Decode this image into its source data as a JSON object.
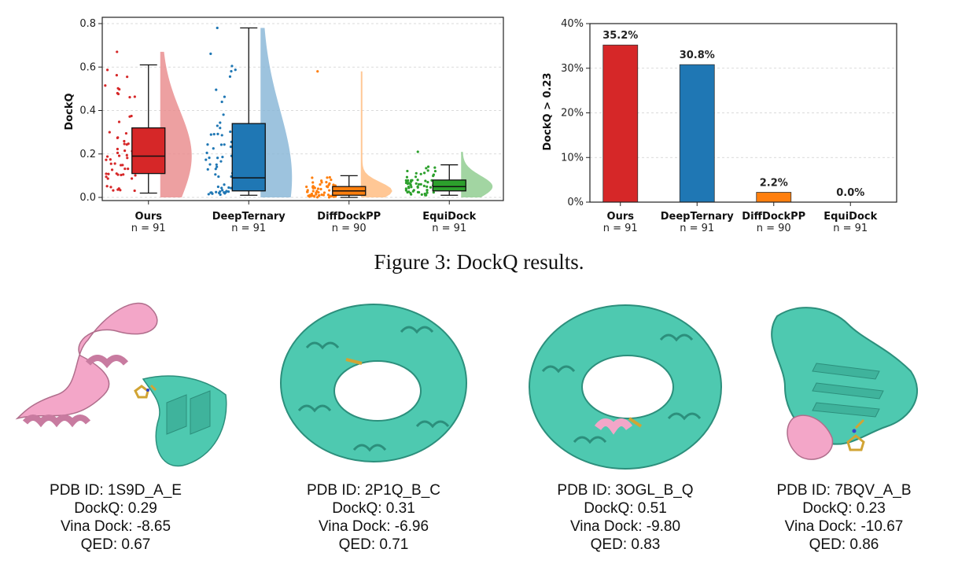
{
  "figure_caption": "Figure 3: DockQ results.",
  "colors": {
    "Ours": "#d62728",
    "DeepTernary": "#1f77b4",
    "DiffDockPP": "#ff7f0e",
    "EquiDock": "#2ca02c",
    "ligand": "#f5c242",
    "receptor": "#4ec9b0",
    "partner": "#f3a6c8"
  },
  "chart_data": [
    {
      "type": "box",
      "ylabel": "DockQ",
      "ylim": [
        0,
        0.8
      ],
      "yticks": [
        "0.0",
        "0.2",
        "0.4",
        "0.6",
        "0.8"
      ],
      "grid": true,
      "categories": [
        "Ours",
        "DeepTernary",
        "DiffDockPP",
        "EquiDock"
      ],
      "n_labels": [
        "n = 91",
        "n = 91",
        "n = 90",
        "n = 91"
      ],
      "series": [
        {
          "category": "Ours",
          "whisker_low": 0.02,
          "q1": 0.11,
          "median": 0.19,
          "q3": 0.32,
          "whisker_high": 0.61,
          "max_point": 0.67
        },
        {
          "category": "DeepTernary",
          "whisker_low": 0.01,
          "q1": 0.03,
          "median": 0.09,
          "q3": 0.34,
          "whisker_high": 0.78,
          "max_point": 0.78
        },
        {
          "category": "DiffDockPP",
          "whisker_low": 0.0,
          "q1": 0.01,
          "median": 0.03,
          "q3": 0.05,
          "whisker_high": 0.1,
          "max_point": 0.58
        },
        {
          "category": "EquiDock",
          "whisker_low": 0.01,
          "q1": 0.03,
          "median": 0.05,
          "q3": 0.08,
          "whisker_high": 0.15,
          "max_point": 0.21
        }
      ]
    },
    {
      "type": "bar",
      "ylabel": "DockQ > 0.23",
      "ylim": [
        0,
        40
      ],
      "yticks": [
        "0%",
        "10%",
        "20%",
        "30%",
        "40%"
      ],
      "grid": true,
      "categories": [
        "Ours",
        "DeepTernary",
        "DiffDockPP",
        "EquiDock"
      ],
      "n_labels": [
        "n = 91",
        "n = 91",
        "n = 90",
        "n = 91"
      ],
      "values": [
        35.2,
        30.8,
        2.2,
        0.0
      ],
      "value_labels": [
        "35.2%",
        "30.8%",
        "2.2%",
        "0.0%"
      ]
    }
  ],
  "examples": [
    {
      "pdb_id": "PDB ID: 1S9D_A_E",
      "dockq": "DockQ: 0.29",
      "vina": "Vina Dock: -8.65",
      "qed": "QED: 0.67"
    },
    {
      "pdb_id": "PDB ID: 2P1Q_B_C",
      "dockq": "DockQ: 0.31",
      "vina": "Vina Dock: -6.96",
      "qed": "QED: 0.71"
    },
    {
      "pdb_id": "PDB ID: 3OGL_B_Q",
      "dockq": "DockQ: 0.51",
      "vina": "Vina Dock: -9.80",
      "qed": "QED: 0.83"
    },
    {
      "pdb_id": "PDB ID: 7BQV_A_B",
      "dockq": "DockQ: 0.23",
      "vina": "Vina Dock: -10.67",
      "qed": "QED: 0.86"
    }
  ]
}
